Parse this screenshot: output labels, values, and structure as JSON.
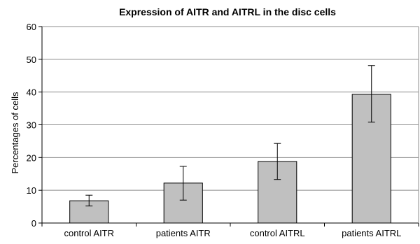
{
  "chart_data": {
    "type": "bar",
    "title": "Expression of AITR and AITRL in the disc cells",
    "xlabel": "",
    "ylabel": "Percentages of cells",
    "categories": [
      "control AITR",
      "patients AITR",
      "control AITRL",
      "patients AITRL"
    ],
    "values": [
      6.8,
      12.2,
      18.8,
      39.3
    ],
    "error_low": [
      5.2,
      7.0,
      13.3,
      30.8
    ],
    "error_high": [
      8.5,
      17.3,
      24.3,
      48.1
    ],
    "ylim": [
      0,
      60
    ],
    "yticks": [
      0,
      10,
      20,
      30,
      40,
      50,
      60
    ],
    "grid": true,
    "legend": false,
    "colors": {
      "bar_fill": "#c0c0c0",
      "bar_stroke": "#000000",
      "grid": "#8c8c8c",
      "axis": "#000000",
      "error_bar": "#000000"
    }
  }
}
